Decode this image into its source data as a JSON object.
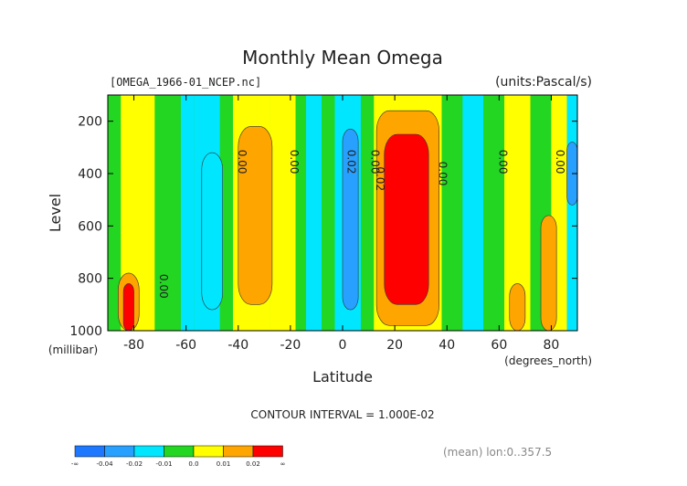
{
  "chart_data": {
    "type": "heatmap",
    "title": "Monthly Mean Omega",
    "source_label": "[OMEGA_1966-01_NCEP.nc]",
    "units_label": "(units:Pascal/s)",
    "xlabel": "Latitude",
    "xunits": "(degrees_north)",
    "ylabel": "Level",
    "yunits": "(millibar)",
    "xlim": [
      -90,
      90
    ],
    "ylim": [
      1000,
      100
    ],
    "x_ticks": [
      -80,
      -60,
      -40,
      -20,
      0,
      20,
      40,
      60,
      80
    ],
    "x_tick_labels": [
      "-80",
      "-60",
      "-40",
      "-20",
      "0",
      "20",
      "40",
      "60",
      "80"
    ],
    "y_ticks": [
      200,
      400,
      600,
      800,
      1000
    ],
    "y_tick_labels": [
      "200",
      "400",
      "600",
      "800",
      "1000"
    ],
    "contour_interval_text": "CONTOUR INTERVAL = 1.000E-02",
    "footnote": "(mean) lon:0..357.5",
    "contour_labels": [
      {
        "x": -70,
        "y": 830,
        "text": "0.00"
      },
      {
        "x": -40,
        "y": 355,
        "text": "0.00"
      },
      {
        "x": -20,
        "y": 355,
        "text": "0.00"
      },
      {
        "x": 2,
        "y": 355,
        "text": "0.02"
      },
      {
        "x": 11,
        "y": 355,
        "text": "0.00"
      },
      {
        "x": 13,
        "y": 420,
        "text": "0.02"
      },
      {
        "x": 37,
        "y": 400,
        "text": "0.00"
      },
      {
        "x": 60,
        "y": 355,
        "text": "0.00"
      },
      {
        "x": 82,
        "y": 355,
        "text": "0.00"
      }
    ],
    "legend": {
      "colors": [
        "#1e78ff",
        "#28a0ff",
        "#00e6ff",
        "#22d622",
        "#ffff00",
        "#ffa500",
        "#ff0000"
      ],
      "labels": [
        "-∞",
        "-0.04",
        "-0.02",
        "-0.01",
        "0.0",
        "0.01",
        "0.02",
        "∞"
      ]
    },
    "bands": [
      {
        "x0": -90,
        "x1": -85,
        "color": "#22d622"
      },
      {
        "x0": -85,
        "x1": -72,
        "color": "#ffff00"
      },
      {
        "x0": -72,
        "x1": -62,
        "color": "#22d622"
      },
      {
        "x0": -62,
        "x1": -57,
        "color": "#00e6ff"
      },
      {
        "x0": -57,
        "x1": -47,
        "color": "#00e6ff"
      },
      {
        "x0": -47,
        "x1": -42,
        "color": "#22d622"
      },
      {
        "x0": -42,
        "x1": -28,
        "color": "#ffff00"
      },
      {
        "x0": -28,
        "x1": -18,
        "color": "#ffff00"
      },
      {
        "x0": -18,
        "x1": -14,
        "color": "#22d622"
      },
      {
        "x0": -14,
        "x1": -8,
        "color": "#00e6ff"
      },
      {
        "x0": -8,
        "x1": -3,
        "color": "#22d622"
      },
      {
        "x0": -3,
        "x1": 7,
        "color": "#00e6ff"
      },
      {
        "x0": 7,
        "x1": 12,
        "color": "#22d622"
      },
      {
        "x0": 12,
        "x1": 38,
        "color": "#ffff00"
      },
      {
        "x0": 38,
        "x1": 46,
        "color": "#22d622"
      },
      {
        "x0": 46,
        "x1": 54,
        "color": "#00e6ff"
      },
      {
        "x0": 54,
        "x1": 62,
        "color": "#22d622"
      },
      {
        "x0": 62,
        "x1": 72,
        "color": "#ffff00"
      },
      {
        "x0": 72,
        "x1": 80,
        "color": "#22d622"
      },
      {
        "x0": 80,
        "x1": 86,
        "color": "#ffff00"
      },
      {
        "x0": 86,
        "x1": 90,
        "color": "#00e6ff"
      }
    ],
    "blobs": [
      {
        "x0": -40,
        "x1": -27,
        "y0": 220,
        "y1": 900,
        "color": "#ffa500"
      },
      {
        "x0": -54,
        "x1": -46,
        "y0": 320,
        "y1": 920,
        "color": "#00e6ff"
      },
      {
        "x0": 0,
        "x1": 6,
        "y0": 230,
        "y1": 920,
        "color": "#28a0ff"
      },
      {
        "x0": 13,
        "x1": 37,
        "y0": 160,
        "y1": 980,
        "color": "#ffa500"
      },
      {
        "x0": 16,
        "x1": 33,
        "y0": 250,
        "y1": 900,
        "color": "#ff0000"
      },
      {
        "x0": -86,
        "x1": -78,
        "y0": 780,
        "y1": 1000,
        "color": "#ffa500"
      },
      {
        "x0": -84,
        "x1": -80,
        "y0": 820,
        "y1": 1000,
        "color": "#ff0000"
      },
      {
        "x0": 64,
        "x1": 70,
        "y0": 820,
        "y1": 1000,
        "color": "#ffa500"
      },
      {
        "x0": 76,
        "x1": 82,
        "y0": 560,
        "y1": 1000,
        "color": "#ffa500"
      },
      {
        "x0": 86,
        "x1": 90,
        "y0": 280,
        "y1": 520,
        "color": "#28a0ff"
      }
    ]
  }
}
